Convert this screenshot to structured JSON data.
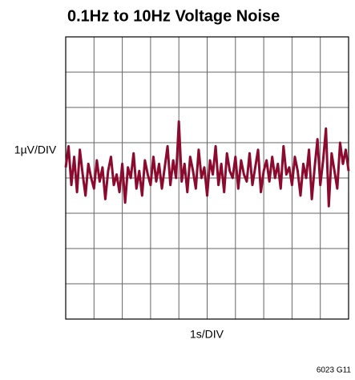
{
  "chart_data": {
    "type": "line",
    "title": "0.1Hz to 10Hz Voltage Noise",
    "y_label": "1µV/DIV",
    "x_label": "1s/DIV",
    "figure_id": "6023 G11",
    "color": "#8b0a2e",
    "grid": true,
    "xlim": [
      0,
      10
    ],
    "xticks": [
      0,
      1,
      2,
      3,
      4,
      5,
      6,
      7,
      8,
      9,
      10
    ],
    "ylim": [
      -4,
      4
    ],
    "yticks": [
      -4,
      -3,
      -2,
      -1,
      0,
      1,
      2,
      3,
      4
    ],
    "x": [
      0,
      0.1,
      0.2,
      0.3,
      0.4,
      0.5,
      0.6,
      0.7,
      0.8,
      0.9,
      1,
      1.1,
      1.2,
      1.3,
      1.4,
      1.5,
      1.6,
      1.7,
      1.8,
      1.9,
      2,
      2.1,
      2.2,
      2.3,
      2.4,
      2.5,
      2.6,
      2.7,
      2.8,
      2.9,
      3,
      3.1,
      3.2,
      3.3,
      3.4,
      3.5,
      3.6,
      3.7,
      3.8,
      3.9,
      4,
      4.1,
      4.2,
      4.3,
      4.4,
      4.5,
      4.6,
      4.7,
      4.8,
      4.9,
      5,
      5.1,
      5.2,
      5.3,
      5.4,
      5.5,
      5.6,
      5.7,
      5.8,
      5.9,
      6,
      6.1,
      6.2,
      6.3,
      6.4,
      6.5,
      6.6,
      6.7,
      6.8,
      6.9,
      7,
      7.1,
      7.2,
      7.3,
      7.4,
      7.5,
      7.6,
      7.7,
      7.8,
      7.9,
      8,
      8.1,
      8.2,
      8.3,
      8.4,
      8.5,
      8.6,
      8.7,
      8.8,
      8.9,
      9,
      9.1,
      9.2,
      9.3,
      9.4,
      9.5,
      9.6,
      9.7,
      9.8,
      9.9,
      10
    ],
    "values": [
      0.3,
      0.9,
      -0.2,
      0.6,
      -0.4,
      0.8,
      0.1,
      -0.5,
      0.4,
      0.0,
      -0.3,
      0.5,
      -0.1,
      0.3,
      -0.6,
      0.2,
      0.6,
      -0.2,
      0.1,
      -0.4,
      0.4,
      -0.7,
      0.3,
      0.0,
      0.7,
      -0.3,
      0.2,
      -0.5,
      0.5,
      0.1,
      -0.2,
      0.6,
      -0.1,
      0.4,
      -0.3,
      0.3,
      0.9,
      -0.2,
      0.5,
      0.0,
      1.6,
      -0.1,
      0.4,
      -0.4,
      0.6,
      0.2,
      -0.3,
      0.8,
      0.0,
      0.3,
      -0.5,
      0.5,
      0.1,
      0.9,
      -0.2,
      0.4,
      -0.4,
      0.7,
      0.2,
      0.0,
      0.6,
      -0.3,
      0.5,
      0.1,
      -0.1,
      0.7,
      -0.2,
      0.3,
      0.8,
      -0.4,
      0.2,
      0.5,
      -0.1,
      0.6,
      0.0,
      0.4,
      -0.3,
      0.9,
      0.1,
      0.3,
      -0.2,
      0.6,
      0.2,
      -0.5,
      0.4,
      0.0,
      0.8,
      -0.6,
      0.3,
      1.1,
      -0.2,
      0.5,
      1.4,
      -0.8,
      0.7,
      0.2,
      -0.3,
      1.0,
      0.4,
      0.8,
      0.2
    ]
  }
}
